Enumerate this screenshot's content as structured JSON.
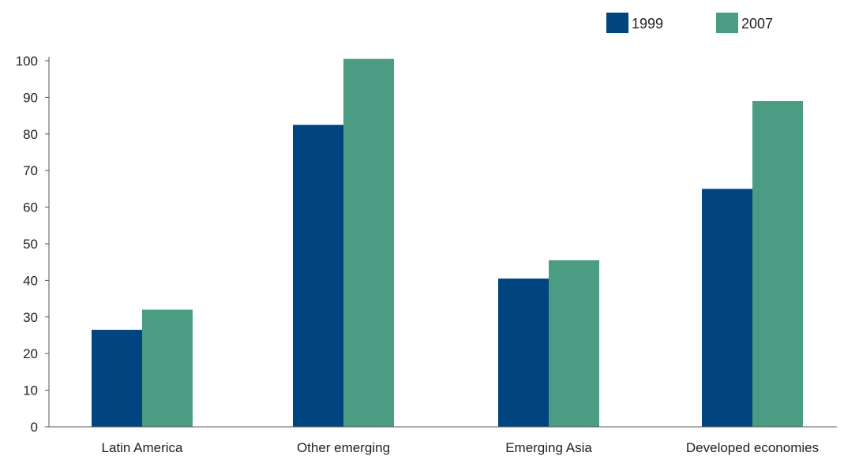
{
  "chart_data": {
    "type": "bar",
    "categories": [
      "Latin America",
      "Other emerging",
      "Emerging Asia",
      "Developed economies"
    ],
    "series": [
      {
        "name": "1999",
        "values": [
          26.5,
          82.5,
          40.5,
          65
        ],
        "color": "#004580"
      },
      {
        "name": "2007",
        "values": [
          32,
          100.5,
          45.5,
          89
        ],
        "color": "#4a9c82"
      }
    ],
    "ylim": [
      0,
      100
    ],
    "yticks": [
      0,
      10,
      20,
      30,
      40,
      50,
      60,
      70,
      80,
      90,
      100
    ],
    "grid": false,
    "legend": "top-right"
  }
}
